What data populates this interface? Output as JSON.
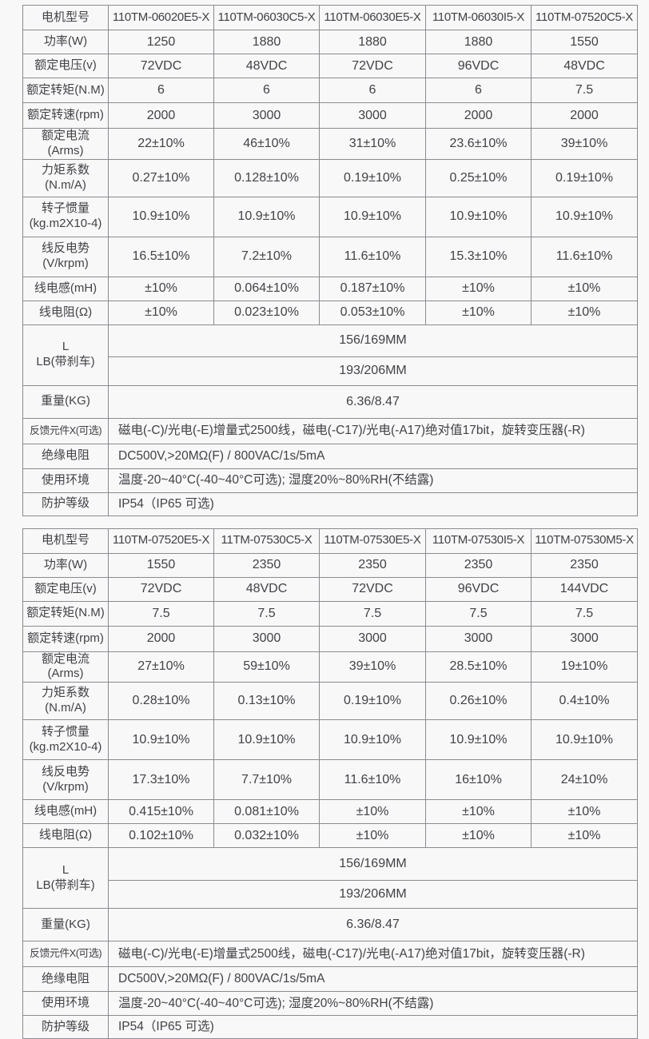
{
  "page": {
    "background": "#f8f8f9",
    "border_color": "#8b8b90",
    "text_color": "#424247"
  },
  "tables": [
    {
      "header_label": "电机型号",
      "models": [
        "110TM-06020E5-X",
        "110TM-06030C5-X",
        "110TM-06030E5-X",
        "110TM-06030I5-X",
        "110TM-07520C5-X"
      ],
      "rows": [
        {
          "label": "功率(W)",
          "values": [
            "1250",
            "1880",
            "1880",
            "1880",
            "1550"
          ]
        },
        {
          "label": "额定电压(v)",
          "values": [
            "72VDC",
            "48VDC",
            "72VDC",
            "96VDC",
            "48VDC"
          ]
        },
        {
          "label": "额定转矩(N.M)",
          "values": [
            "6",
            "6",
            "6",
            "6",
            "7.5"
          ]
        },
        {
          "label": "额定转速(rpm)",
          "values": [
            "2000",
            "3000",
            "3000",
            "2000",
            "2000"
          ]
        },
        {
          "label": "额定电流(Arms)",
          "values": [
            "22±10%",
            "46±10%",
            "31±10%",
            "23.6±10%",
            "39±10%"
          ]
        },
        {
          "label": "力矩系数\n(N.m/A)",
          "values": [
            "0.27±10%",
            "0.128±10%",
            "0.19±10%",
            "0.25±10%",
            "0.19±10%"
          ]
        },
        {
          "label": "转子惯量\n(kg.m2X10-4)",
          "values": [
            "10.9±10%",
            "10.9±10%",
            "10.9±10%",
            "10.9±10%",
            "10.9±10%"
          ]
        },
        {
          "label": "线反电势\n(V/krpm)",
          "values": [
            "16.5±10%",
            "7.2±10%",
            "11.6±10%",
            "15.3±10%",
            "11.6±10%"
          ]
        },
        {
          "label": "线电感(mH)",
          "values": [
            "±10%",
            "0.064±10%",
            "0.187±10%",
            "±10%",
            "±10%"
          ]
        },
        {
          "label": "线电阻(Ω)",
          "values": [
            "±10%",
            "0.023±10%",
            "0.053±10%",
            "±10%",
            "±10%"
          ]
        }
      ],
      "dims": {
        "l_label": "L",
        "lb_label": "LB(带刹车)",
        "l_value": "156/169MM",
        "lb_value": "193/206MM"
      },
      "weight": {
        "label": "重量(KG)",
        "value": "6.36/8.47"
      },
      "feedback": {
        "label": "反馈元件X(可选)",
        "value": "磁电(-C)/光电(-E)增量式2500线，磁电(-C17)/光电(-A17)绝对值17bit，旋转变压器(-R)"
      },
      "insulation": {
        "label": "绝缘电阻",
        "value": "DC500V,>20MΩ(F) / 800VAC/1s/5mA"
      },
      "environment": {
        "label": "使用环境",
        "value": "温度-20~40°C(-40~40°C可选); 湿度20%~80%RH(不结露)"
      },
      "protection": {
        "label": "防护等级",
        "value": "IP54（IP65 可选)"
      }
    },
    {
      "header_label": "电机型号",
      "models": [
        "110TM-07520E5-X",
        "11TM-07530C5-X",
        "110TM-07530E5-X",
        "110TM-07530I5-X",
        "110TM-07530M5-X"
      ],
      "rows": [
        {
          "label": "功率(W)",
          "values": [
            "1550",
            "2350",
            "2350",
            "2350",
            "2350"
          ]
        },
        {
          "label": "额定电压(v)",
          "values": [
            "72VDC",
            "48VDC",
            "72VDC",
            "96VDC",
            "144VDC"
          ]
        },
        {
          "label": "额定转矩(N.M)",
          "values": [
            "7.5",
            "7.5",
            "7.5",
            "7.5",
            "7.5"
          ]
        },
        {
          "label": "额定转速(rpm)",
          "values": [
            "2000",
            "3000",
            "3000",
            "3000",
            "3000"
          ]
        },
        {
          "label": "额定电流(Arms)",
          "values": [
            "27±10%",
            "59±10%",
            "39±10%",
            "28.5±10%",
            "19±10%"
          ]
        },
        {
          "label": "力矩系数\n(N.m/A)",
          "values": [
            "0.28±10%",
            "0.13±10%",
            "0.19±10%",
            "0.26±10%",
            "0.4±10%"
          ]
        },
        {
          "label": "转子惯量\n(kg.m2X10-4)",
          "values": [
            "10.9±10%",
            "10.9±10%",
            "10.9±10%",
            "10.9±10%",
            "10.9±10%"
          ]
        },
        {
          "label": "线反电势\n(V/krpm)",
          "values": [
            "17.3±10%",
            "7.7±10%",
            "11.6±10%",
            "16±10%",
            "24±10%"
          ]
        },
        {
          "label": "线电感(mH)",
          "values": [
            "0.415±10%",
            "0.081±10%",
            "±10%",
            "±10%",
            "±10%"
          ]
        },
        {
          "label": "线电阻(Ω)",
          "values": [
            "0.102±10%",
            "0.032±10%",
            "±10%",
            "±10%",
            "±10%"
          ]
        }
      ],
      "dims": {
        "l_label": "L",
        "lb_label": "LB(带刹车)",
        "l_value": "156/169MM",
        "lb_value": "193/206MM"
      },
      "weight": {
        "label": "重量(KG)",
        "value": "6.36/8.47"
      },
      "feedback": {
        "label": "反馈元件X(可选)",
        "value": "磁电(-C)/光电(-E)增量式2500线，磁电(-C17)/光电(-A17)绝对值17bit，旋转变压器(-R)"
      },
      "insulation": {
        "label": "绝缘电阻",
        "value": "DC500V,>20MΩ(F) / 800VAC/1s/5mA"
      },
      "environment": {
        "label": "使用环境",
        "value": "温度-20~40°C(-40~40°C可选); 湿度20%~80%RH(不结露)"
      },
      "protection": {
        "label": "防护等级",
        "value": "IP54（IP65 可选)"
      }
    }
  ]
}
